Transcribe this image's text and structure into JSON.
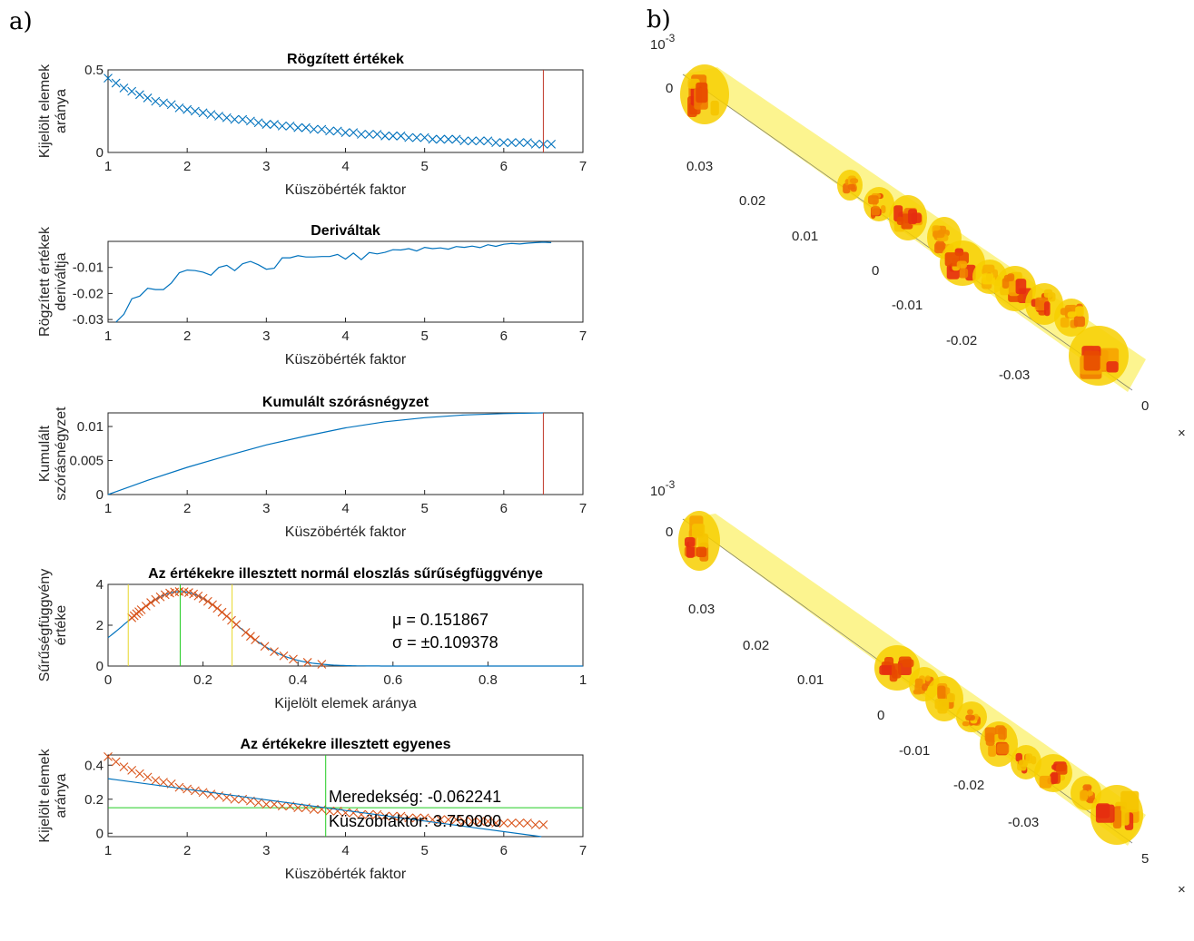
{
  "panel_labels": {
    "a": "a)",
    "b": "b)"
  },
  "colors": {
    "blue": "#0072BD",
    "orange": "#D95319",
    "red_line": "#C0392B",
    "green": "#22CC22",
    "yellow": "#E8D82A"
  },
  "chart_data": [
    {
      "type": "scatter",
      "title": "Rögzített értékek",
      "xlabel": "Küszöbérték faktor",
      "ylabel": [
        "Kijelölt elemek",
        "aránya"
      ],
      "xlim": [
        1,
        7
      ],
      "ylim": [
        0,
        0.5
      ],
      "xticks": [
        "1",
        "2",
        "3",
        "4",
        "5",
        "6",
        "7"
      ],
      "yticks": [
        {
          "v": 0,
          "t": "0"
        },
        {
          "v": 0.5,
          "t": "0.5"
        }
      ],
      "series": [
        {
          "marker": "x",
          "color": "blue",
          "x_start": 1.0,
          "x_step": 0.1,
          "values": [
            0.45,
            0.42,
            0.39,
            0.37,
            0.35,
            0.33,
            0.31,
            0.3,
            0.29,
            0.27,
            0.26,
            0.25,
            0.24,
            0.23,
            0.22,
            0.21,
            0.2,
            0.2,
            0.19,
            0.18,
            0.17,
            0.17,
            0.16,
            0.16,
            0.15,
            0.15,
            0.14,
            0.14,
            0.13,
            0.13,
            0.12,
            0.12,
            0.11,
            0.11,
            0.11,
            0.1,
            0.1,
            0.1,
            0.09,
            0.09,
            0.09,
            0.08,
            0.08,
            0.08,
            0.08,
            0.07,
            0.07,
            0.07,
            0.07,
            0.06,
            0.06,
            0.06,
            0.06,
            0.06,
            0.05,
            0.05,
            0.05
          ]
        }
      ],
      "vlines": [
        {
          "x": 6.5,
          "color": "red_line"
        }
      ]
    },
    {
      "type": "line",
      "title": "Deriváltak",
      "xlabel": "Küszöbérték faktor",
      "ylabel": [
        "Rögzített értékek",
        "deriváltja"
      ],
      "xlim": [
        1,
        7
      ],
      "ylim": [
        -0.031,
        0
      ],
      "xticks": [
        "1",
        "2",
        "3",
        "4",
        "5",
        "6",
        "7"
      ],
      "yticks": [
        {
          "v": -0.01,
          "t": "-0.01"
        },
        {
          "v": -0.02,
          "t": "-0.02"
        },
        {
          "v": -0.03,
          "t": "-0.03"
        }
      ],
      "series": [
        {
          "color": "blue",
          "x_start": 1.1,
          "x_step": 0.1,
          "values": [
            -0.031,
            -0.028,
            -0.022,
            -0.021,
            -0.018,
            -0.0185,
            -0.0185,
            -0.016,
            -0.012,
            -0.011,
            -0.0112,
            -0.0118,
            -0.013,
            -0.01,
            -0.0092,
            -0.0112,
            -0.0086,
            -0.0077,
            -0.009,
            -0.0107,
            -0.0103,
            -0.0063,
            -0.0063,
            -0.0055,
            -0.006,
            -0.006,
            -0.0058,
            -0.0058,
            -0.005,
            -0.0068,
            -0.0045,
            -0.007,
            -0.0043,
            -0.0048,
            -0.0042,
            -0.0032,
            -0.0033,
            -0.0028,
            -0.0037,
            -0.0023,
            -0.0028,
            -0.0025,
            -0.003,
            -0.002,
            -0.0023,
            -0.0018,
            -0.0024,
            -0.0013,
            -0.0019,
            -0.0011,
            -0.0008,
            -0.001,
            -0.0007,
            -0.0005,
            -0.0003,
            -0.0005
          ]
        }
      ]
    },
    {
      "type": "line",
      "title": "Kumulált szórásnégyzet",
      "xlabel": "Küszöbérték faktor",
      "ylabel": [
        "Kumulált",
        "szórásnégyzet"
      ],
      "xlim": [
        1,
        7
      ],
      "ylim": [
        0,
        0.012
      ],
      "xticks": [
        "1",
        "2",
        "3",
        "4",
        "5",
        "6",
        "7"
      ],
      "yticks": [
        {
          "v": 0,
          "t": "0"
        },
        {
          "v": 0.005,
          "t": "0.005"
        },
        {
          "v": 0.01,
          "t": "0.01"
        }
      ],
      "series": [
        {
          "color": "blue",
          "x": [
            1.0,
            1.5,
            2.0,
            2.5,
            3.0,
            3.5,
            4.0,
            4.5,
            5.0,
            5.5,
            6.0,
            6.5
          ],
          "values": [
            0,
            0.0021,
            0.004,
            0.0057,
            0.0073,
            0.0086,
            0.0098,
            0.0107,
            0.0113,
            0.0117,
            0.0119,
            0.012
          ]
        }
      ],
      "vlines": [
        {
          "x": 6.5,
          "color": "red_line"
        }
      ]
    },
    {
      "type": "line",
      "title": "Az értékekre illesztett normál eloszlás sűrűségfüggvénye",
      "xlabel": "Kijelölt elemek aránya",
      "ylabel": [
        "Sűrűségfüggvény",
        "értéke"
      ],
      "xlim": [
        0,
        1
      ],
      "ylim": [
        0,
        4
      ],
      "xticks": [
        {
          "v": 0,
          "t": "0"
        },
        {
          "v": 0.2,
          "t": "0.2"
        },
        {
          "v": 0.4,
          "t": "0.4"
        },
        {
          "v": 0.6,
          "t": "0.6"
        },
        {
          "v": 0.8,
          "t": "0.8"
        },
        {
          "v": 1,
          "t": "1"
        }
      ],
      "yticks": [
        {
          "v": 0,
          "t": "0"
        },
        {
          "v": 2,
          "t": "2"
        },
        {
          "v": 4,
          "t": "4"
        }
      ],
      "mu": 0.151867,
      "sigma": 0.109378,
      "markers_x": [
        0.05,
        0.055,
        0.06,
        0.065,
        0.07,
        0.08,
        0.09,
        0.1,
        0.11,
        0.12,
        0.13,
        0.14,
        0.15,
        0.16,
        0.17,
        0.18,
        0.19,
        0.2,
        0.21,
        0.22,
        0.23,
        0.24,
        0.25,
        0.26,
        0.27,
        0.29,
        0.3,
        0.31,
        0.33,
        0.35,
        0.37,
        0.39,
        0.42,
        0.45
      ],
      "vlines": [
        {
          "x": 0.0425,
          "color": "yellow"
        },
        {
          "x": 0.1519,
          "color": "green"
        },
        {
          "x": 0.2612,
          "color": "yellow"
        }
      ],
      "annotations": [
        "μ = 0.151867",
        "σ = ±0.109378"
      ]
    },
    {
      "type": "scatter",
      "title": "Az értékekre illesztett egyenes",
      "xlabel": "Küszöbérték faktor",
      "ylabel": [
        "Kijelölt elemek",
        "aránya"
      ],
      "xlim": [
        1,
        7
      ],
      "ylim": [
        -0.02,
        0.46
      ],
      "xticks": [
        "1",
        "2",
        "3",
        "4",
        "5",
        "6",
        "7"
      ],
      "yticks": [
        {
          "v": 0,
          "t": "0"
        },
        {
          "v": 0.2,
          "t": "0.2"
        },
        {
          "v": 0.4,
          "t": "0.4"
        }
      ],
      "series": [
        {
          "marker": "x",
          "color": "orange",
          "x_start": 1.0,
          "x_step": 0.1,
          "values": [
            0.45,
            0.42,
            0.39,
            0.37,
            0.35,
            0.33,
            0.31,
            0.3,
            0.29,
            0.27,
            0.26,
            0.25,
            0.24,
            0.23,
            0.22,
            0.21,
            0.2,
            0.2,
            0.19,
            0.18,
            0.17,
            0.17,
            0.16,
            0.16,
            0.15,
            0.15,
            0.14,
            0.14,
            0.13,
            0.13,
            0.12,
            0.12,
            0.11,
            0.11,
            0.11,
            0.1,
            0.1,
            0.1,
            0.09,
            0.09,
            0.09,
            0.08,
            0.08,
            0.08,
            0.08,
            0.07,
            0.07,
            0.07,
            0.07,
            0.06,
            0.06,
            0.06,
            0.06,
            0.06,
            0.05,
            0.05
          ]
        }
      ],
      "fit_line": {
        "color": "blue",
        "slope": -0.062241,
        "intercept": 0.383
      },
      "vlines": [
        {
          "x": 3.75,
          "color": "green"
        }
      ],
      "hlines": [
        {
          "y": 0.15,
          "color": "green"
        }
      ],
      "annotations": [
        "Meredekség: -0.062241",
        "Küszöbfaktor: 3.750000"
      ]
    }
  ],
  "views_3d": [
    {
      "exponent_label": "10⁻³",
      "exp_base": "10",
      "exp_power": "-3",
      "axis_labels": [
        "0",
        "0.03",
        "0.02",
        "0.01",
        "0",
        "-0.01",
        "-0.02",
        "-0.03",
        "0"
      ],
      "cut_marker": "×"
    },
    {
      "exponent_label": "10⁻³",
      "exp_base": "10",
      "exp_power": "-3",
      "axis_labels": [
        "0",
        "0.03",
        "0.02",
        "0.01",
        "0",
        "-0.01",
        "-0.02",
        "-0.03",
        "5"
      ],
      "cut_marker": "×"
    }
  ]
}
